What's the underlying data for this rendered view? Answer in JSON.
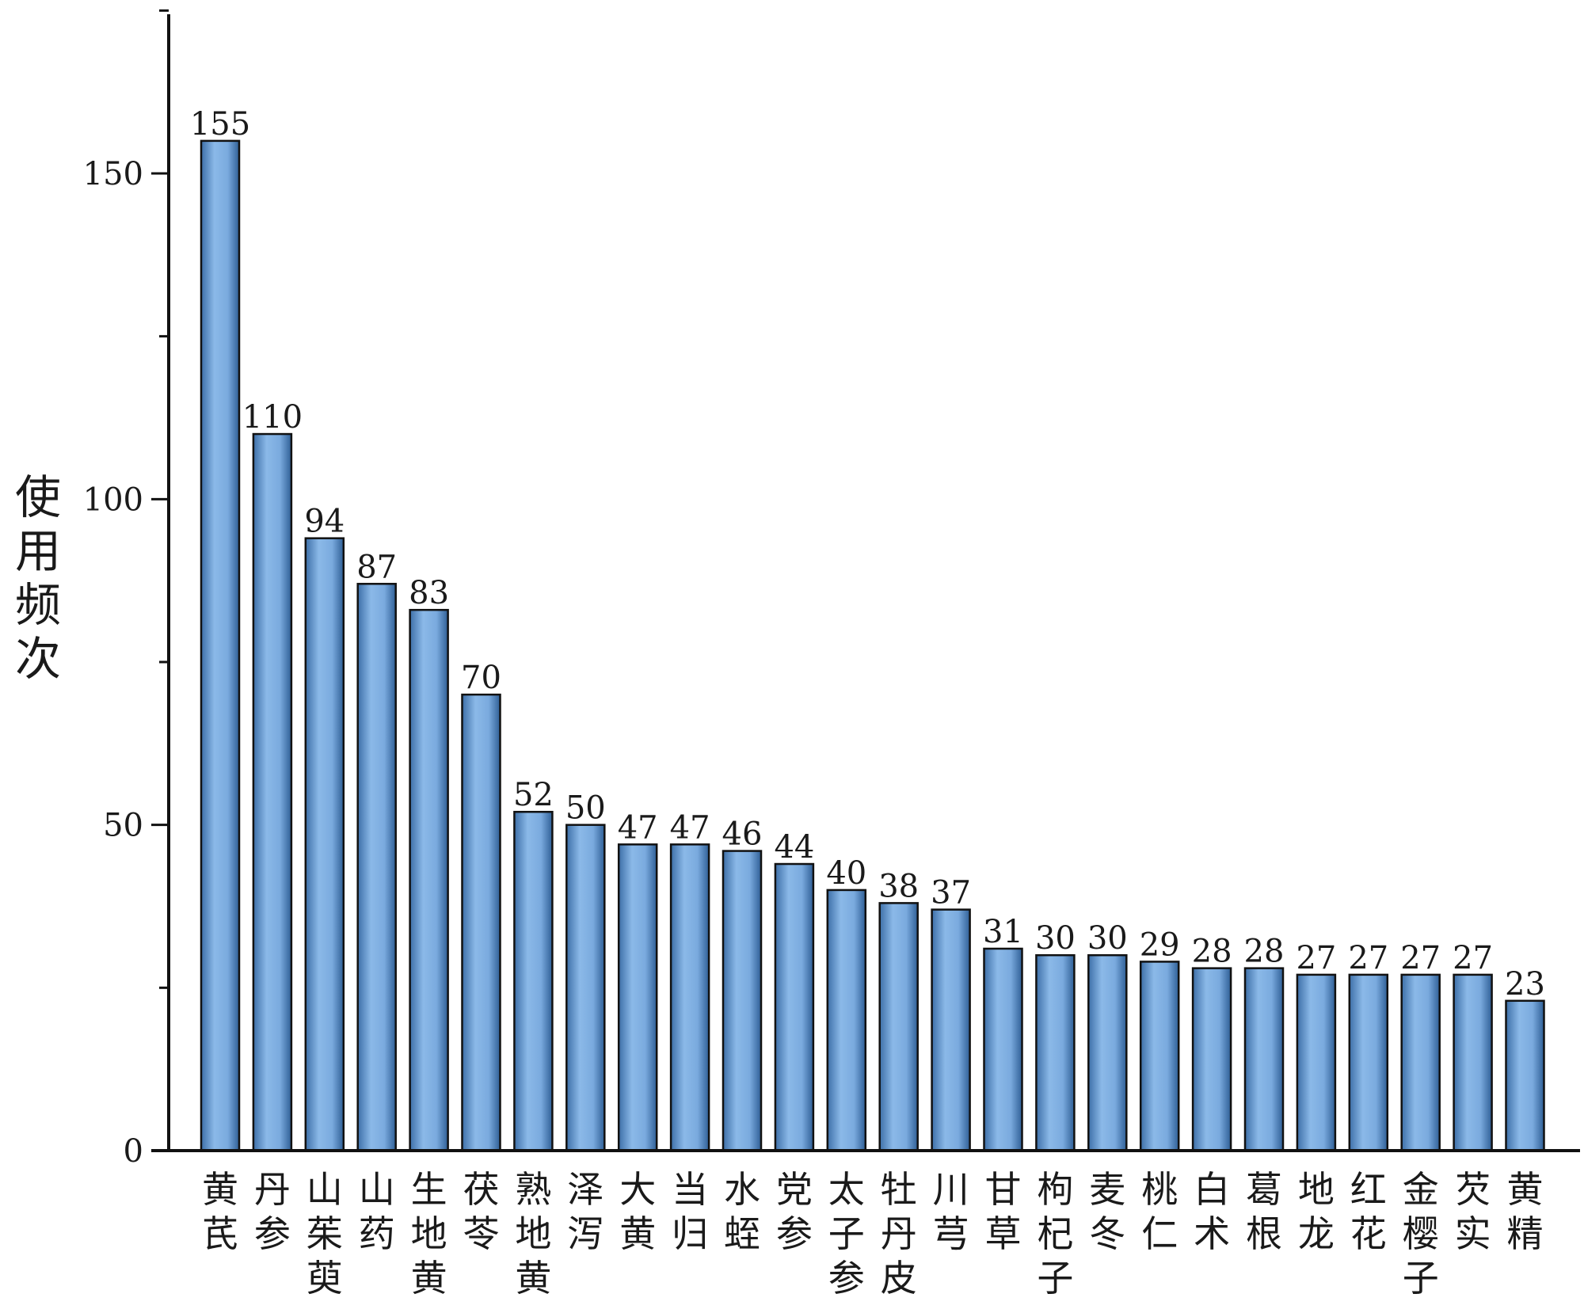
{
  "chart_data": {
    "type": "bar",
    "title": "",
    "xlabel": "",
    "ylabel": "使用频次",
    "ylim": [
      0,
      175
    ],
    "yticks": [
      0,
      50,
      100,
      150
    ],
    "grid": false,
    "legend": "none",
    "bar_color": "#7aaade",
    "bar_edge_color": "#111111",
    "categories": [
      "黄芪",
      "丹参",
      "山茱萸",
      "山药",
      "生地黄",
      "茯苓",
      "熟地黄",
      "泽泻",
      "大黄",
      "当归",
      "水蛭",
      "党参",
      "太子参",
      "牡丹皮",
      "川芎",
      "甘草",
      "枸杞子",
      "麦冬",
      "桃仁",
      "白术",
      "葛根",
      "地龙",
      "红花",
      "金樱子",
      "芡实",
      "黄精"
    ],
    "values": [
      155,
      110,
      94,
      87,
      83,
      70,
      52,
      50,
      47,
      47,
      46,
      44,
      40,
      38,
      37,
      31,
      30,
      30,
      29,
      28,
      28,
      27,
      27,
      27,
      27,
      23
    ]
  }
}
